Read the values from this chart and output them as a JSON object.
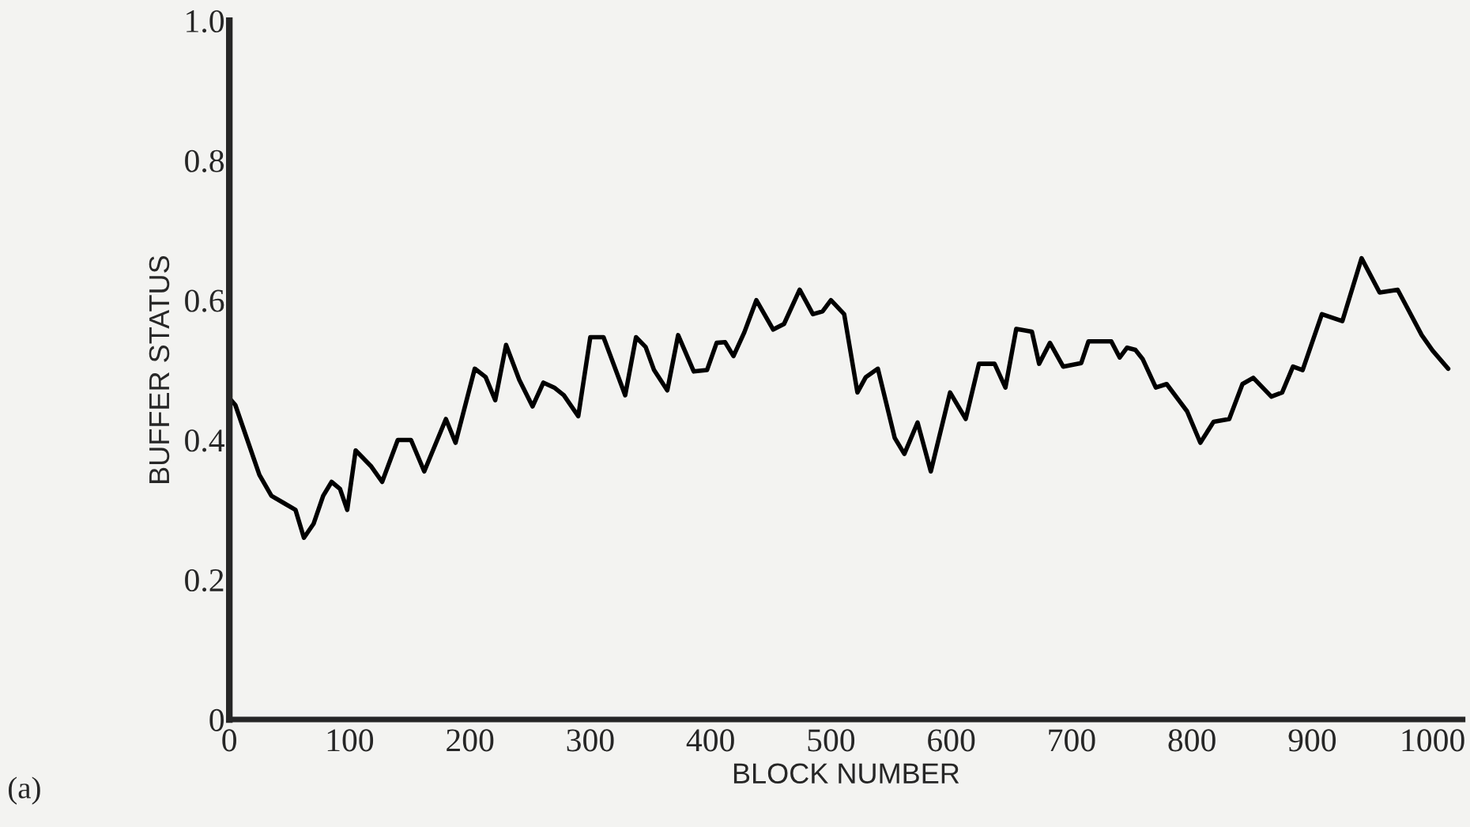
{
  "chart_data": {
    "type": "line",
    "xlabel": "BLOCK NUMBER",
    "ylabel": "BUFFER STATUS",
    "annotations": [
      "(a)"
    ],
    "x": [
      0,
      5,
      15,
      25,
      35,
      45,
      55,
      62,
      70,
      78,
      85,
      92,
      98,
      105,
      118,
      127,
      140,
      151,
      162,
      180,
      188,
      204,
      213,
      221,
      230,
      241,
      252,
      261,
      270,
      278,
      290,
      300,
      311,
      329,
      338,
      346,
      353,
      364,
      373,
      386,
      397,
      405,
      412,
      419,
      428,
      438,
      452,
      461,
      474,
      485,
      493,
      500,
      511,
      522,
      529,
      539,
      553,
      561,
      572,
      583,
      599,
      612,
      623,
      636,
      645,
      654,
      667,
      673,
      682,
      693,
      708,
      714,
      733,
      740,
      746,
      753,
      759,
      770,
      779,
      796,
      807,
      818,
      831,
      842,
      851,
      866,
      875,
      884,
      892,
      908,
      925,
      941,
      956,
      971,
      991,
      1000,
      1013
    ],
    "series": [
      {
        "color": "#000000",
        "values": [
          0.46,
          0.45,
          0.4,
          0.35,
          0.32,
          0.31,
          0.3,
          0.26,
          0.28,
          0.32,
          0.34,
          0.33,
          0.3,
          0.385,
          0.362,
          0.34,
          0.4,
          0.4,
          0.355,
          0.43,
          0.396,
          0.502,
          0.49,
          0.457,
          0.536,
          0.486,
          0.448,
          0.482,
          0.475,
          0.464,
          0.434,
          0.547,
          0.547,
          0.464,
          0.547,
          0.533,
          0.5,
          0.471,
          0.55,
          0.498,
          0.5,
          0.539,
          0.54,
          0.52,
          0.554,
          0.6,
          0.558,
          0.566,
          0.615,
          0.58,
          0.584,
          0.6,
          0.58,
          0.468,
          0.49,
          0.502,
          0.403,
          0.38,
          0.425,
          0.355,
          0.468,
          0.43,
          0.509,
          0.509,
          0.475,
          0.559,
          0.555,
          0.509,
          0.539,
          0.505,
          0.51,
          0.541,
          0.541,
          0.518,
          0.532,
          0.529,
          0.516,
          0.475,
          0.48,
          0.441,
          0.396,
          0.426,
          0.43,
          0.48,
          0.489,
          0.462,
          0.468,
          0.505,
          0.5,
          0.58,
          0.57,
          0.66,
          0.611,
          0.615,
          0.55,
          0.528,
          0.502
        ]
      }
    ],
    "xlim": [
      0,
      1025
    ],
    "ylim": [
      0,
      1.0
    ],
    "xticks": [
      0,
      100,
      200,
      300,
      400,
      500,
      600,
      700,
      800,
      900,
      1000
    ],
    "yticks": [
      0,
      {
        "value": 0.2,
        "label": "0.2"
      },
      {
        "value": 0.4,
        "label": "0.4"
      },
      {
        "value": 0.6,
        "label": "0.6"
      },
      {
        "value": 0.8,
        "label": "0.8"
      },
      {
        "value": 1,
        "label": "1.0"
      }
    ],
    "grid": false,
    "legend": false,
    "marker": "none",
    "line_style": "solid"
  }
}
